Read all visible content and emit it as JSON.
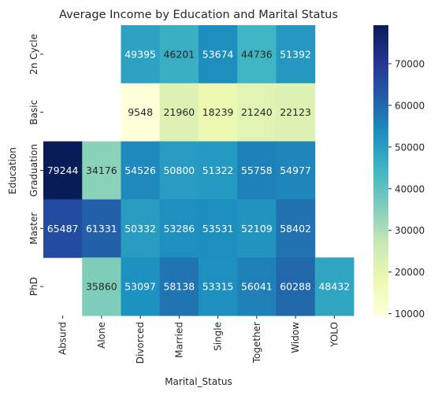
{
  "chart_data": {
    "type": "heatmap",
    "title": "Average Income by Education and Marital Status",
    "xlabel": "Marital_Status",
    "ylabel": "Education",
    "x": [
      "Absurd",
      "Alone",
      "Divorced",
      "Married",
      "Single",
      "Together",
      "Widow",
      "YOLO"
    ],
    "y": [
      "2n Cycle",
      "Basic",
      "Graduation",
      "Master",
      "PhD"
    ],
    "values": [
      [
        null,
        null,
        49395,
        46201,
        53674,
        44736,
        51392,
        null
      ],
      [
        null,
        null,
        9548,
        21960,
        18239,
        21240,
        22123,
        null
      ],
      [
        79244,
        34176,
        54526,
        50800,
        51322,
        55758,
        54977,
        null
      ],
      [
        65487,
        61331,
        50332,
        53286,
        53531,
        52109,
        58402,
        null
      ],
      [
        null,
        35860,
        53097,
        58138,
        53315,
        56041,
        60288,
        48432
      ]
    ],
    "colorscale": "YlGnBu",
    "vmin": 9548,
    "vmax": 79244,
    "colorbar_ticks": [
      10000,
      20000,
      30000,
      40000,
      50000,
      60000,
      70000
    ],
    "grid": false
  }
}
